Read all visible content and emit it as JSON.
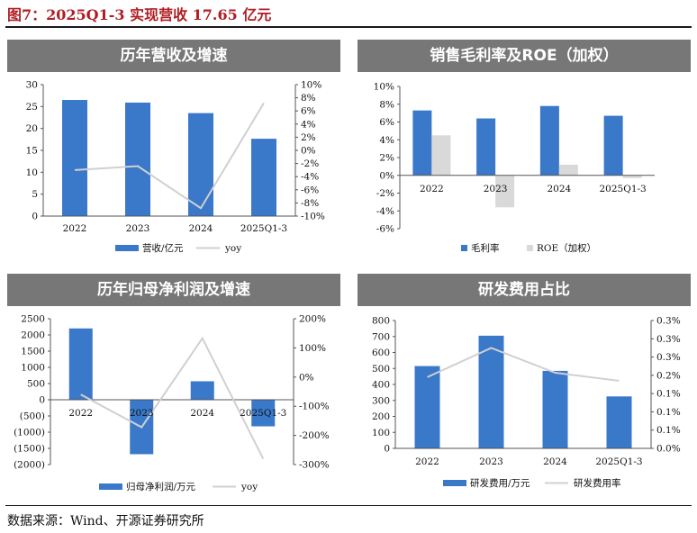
{
  "figure": {
    "title": "图7：2025Q1-3 实现营收 17.65 亿元",
    "source": "数据来源：Wind、开源证券研究所"
  },
  "chart_data": [
    {
      "id": "p1",
      "type": "bar",
      "title": "历年营收及增速",
      "categories": [
        "2022",
        "2023",
        "2024",
        "2025Q1-3"
      ],
      "series": [
        {
          "name": "营收/亿元",
          "kind": "bar",
          "axis": "left",
          "color": "#3a78c9",
          "values": [
            26.5,
            25.9,
            23.5,
            17.65
          ]
        },
        {
          "name": "yoy",
          "kind": "line",
          "axis": "right",
          "color": "#d0d0d0",
          "values": [
            -3.0,
            -2.4,
            -8.8,
            7.2
          ]
        }
      ],
      "left_axis": {
        "min": 0,
        "max": 30,
        "step": 5,
        "suffix": ""
      },
      "right_axis": {
        "min": -10,
        "max": 10,
        "step": 2,
        "suffix": "%"
      },
      "legend": "bottom"
    },
    {
      "id": "p2",
      "type": "bar",
      "title": "销售毛利率及ROE（加权）",
      "categories": [
        "2022",
        "2023",
        "2024",
        "2025Q1-3"
      ],
      "series": [
        {
          "name": "毛利率",
          "kind": "bar",
          "axis": "left",
          "color": "#3a78c9",
          "values": [
            7.3,
            6.4,
            7.8,
            6.7
          ]
        },
        {
          "name": "ROE（加权）",
          "kind": "bar",
          "axis": "left",
          "color": "#d9d9d9",
          "values": [
            4.5,
            -3.6,
            1.2,
            -0.3
          ]
        }
      ],
      "left_axis": {
        "min": -6,
        "max": 10,
        "step": 2,
        "suffix": "%"
      },
      "legend": "bottom"
    },
    {
      "id": "p3",
      "type": "bar",
      "title": "历年归母净利润及增速",
      "categories": [
        "2022",
        "2023",
        "2024",
        "2025Q1-3"
      ],
      "series": [
        {
          "name": "归母净利润/万元",
          "kind": "bar",
          "axis": "left",
          "color": "#3a78c9",
          "values": [
            2200,
            -1680,
            570,
            -820
          ]
        },
        {
          "name": "yoy",
          "kind": "line",
          "axis": "right",
          "color": "#d0d0d0",
          "values": [
            -60,
            -172,
            133,
            -280
          ]
        }
      ],
      "left_axis": {
        "min": -2000,
        "max": 2500,
        "step": 500,
        "suffix": "",
        "negative_style": "paren-red"
      },
      "right_axis": {
        "min": -300,
        "max": 200,
        "step": 100,
        "suffix": "%"
      },
      "legend": "bottom"
    },
    {
      "id": "p4",
      "type": "bar",
      "title": "研发费用占比",
      "categories": [
        "2022",
        "2023",
        "2024",
        "2025Q1-3"
      ],
      "series": [
        {
          "name": "研发费用/万元",
          "kind": "bar",
          "axis": "left",
          "color": "#3a78c9",
          "values": [
            515,
            705,
            485,
            325
          ]
        },
        {
          "name": "研发费用率",
          "kind": "line",
          "axis": "right",
          "color": "#d0d0d0",
          "values": [
            0.195,
            0.275,
            0.207,
            0.185
          ]
        }
      ],
      "left_axis": {
        "min": 0,
        "max": 800,
        "step": 100,
        "suffix": ""
      },
      "right_axis": {
        "min": 0,
        "max": 0.35,
        "step": 0.05,
        "suffix": "%",
        "decimals": 1
      },
      "legend": "bottom"
    }
  ]
}
